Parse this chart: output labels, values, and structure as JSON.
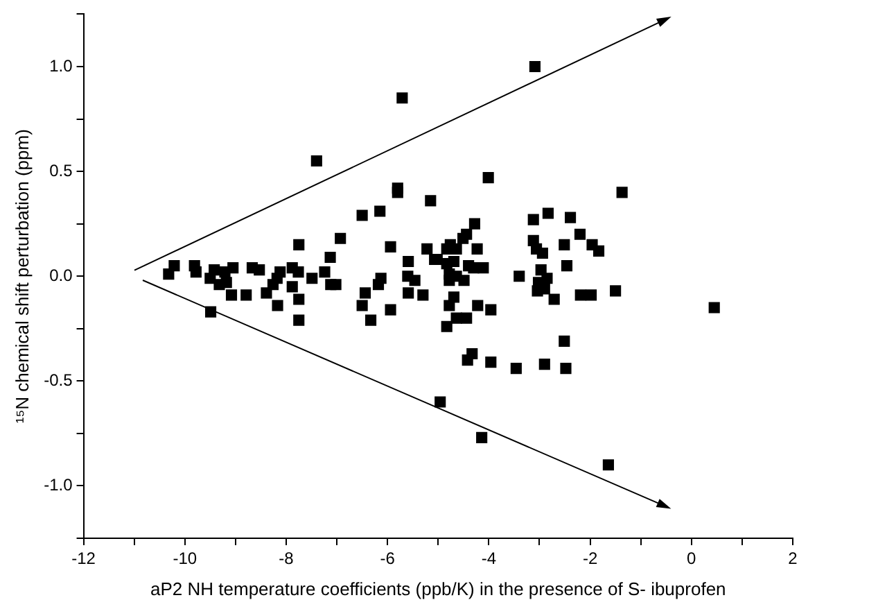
{
  "chart_data": {
    "type": "scatter",
    "xlabel": "aP2 NH temperature coefficients (ppb/K) in the presence of S- ibuprofen",
    "ylabel": "¹⁵N chemical shift perturbation (ppm)",
    "xlim": [
      -12,
      2
    ],
    "xticks": [
      -12,
      {
        "value": -11,
        "label": null
      },
      -10,
      {
        "value": -9,
        "label": null
      },
      -8,
      {
        "value": -7,
        "label": null
      },
      -6,
      {
        "value": -5,
        "label": null
      },
      -4,
      {
        "value": -3,
        "label": null
      },
      -2,
      {
        "value": -1,
        "label": null
      },
      0,
      {
        "value": 1,
        "label": null
      },
      2
    ],
    "ylim": [
      -1.25,
      1.25
    ],
    "yticks": [
      {
        "value": -1.25,
        "label": null
      },
      {
        "value": -1,
        "label": "-1.0"
      },
      {
        "value": -0.75,
        "label": null
      },
      {
        "value": -0.5,
        "label": "-0.5"
      },
      {
        "value": -0.25,
        "label": null
      },
      {
        "value": 0,
        "label": "0.0"
      },
      {
        "value": 0.25,
        "label": null
      },
      {
        "value": 0.5,
        "label": "0.5"
      },
      {
        "value": 0.75,
        "label": null
      },
      {
        "value": 1,
        "label": "1.0"
      },
      {
        "value": 1.25,
        "label": null
      }
    ],
    "grid": false,
    "legend": false,
    "marker": "square",
    "series": [
      {
        "color": "#000000",
        "x": [
          -10.32,
          -10.21,
          -9.81,
          -9.78,
          -9.5,
          -9.42,
          -9.49,
          -9.32,
          -9.21,
          -9.18,
          -9.08,
          -9.05,
          -8.79,
          -8.67,
          -8.53,
          -8.39,
          -8.26,
          -8.18,
          -8.12,
          -8.17,
          -7.88,
          -7.76,
          -7.88,
          -7.75,
          -7.75,
          -7.75,
          -7.49,
          -7.4,
          -7.24,
          -7.13,
          -7.12,
          -7.02,
          -6.93,
          -6.5,
          -6.44,
          -6.5,
          -6.33,
          -6.15,
          -6.13,
          -6.18,
          -5.94,
          -5.94,
          -5.8,
          -5.8,
          -5.71,
          -5.59,
          -5.6,
          -5.59,
          -5.46,
          -5.3,
          -5.22,
          -5.15,
          -5.07,
          -3.09,
          -4.01,
          -1.37,
          -4.28,
          -4.44,
          -4.51,
          -4.76,
          -4.83,
          -4.64,
          -4.23,
          -5.02,
          -4.83,
          -4.69,
          -4.4,
          -4.3,
          -4.11,
          -4.78,
          -4.64,
          -4.78,
          -4.49,
          -4.69,
          -4.78,
          -4.22,
          -3.96,
          -4.64,
          -4.44,
          -4.83,
          -4.33,
          -4.42,
          -3.96,
          -3.46,
          -4.96,
          -4.14,
          -2.9,
          -2.48,
          -2.51,
          -1.64,
          0.45,
          -3.12,
          -2.83,
          -2.39,
          -2.2,
          -1.96,
          -1.83,
          -3.12,
          -3.06,
          -2.94,
          -2.51,
          -2.46,
          -3.4,
          -2.97,
          -2.85,
          -3.02,
          -3.04,
          -2.9,
          -2.71,
          -2.19,
          -1.98,
          -1.5
        ],
        "values": [
          0.01,
          0.05,
          0.05,
          0.02,
          -0.01,
          0.03,
          -0.17,
          -0.04,
          0.02,
          -0.03,
          -0.09,
          0.04,
          -0.09,
          0.04,
          0.03,
          -0.08,
          -0.04,
          -0.01,
          0.02,
          -0.14,
          0.04,
          0.02,
          -0.05,
          -0.11,
          0.15,
          -0.21,
          -0.01,
          0.55,
          0.02,
          0.09,
          -0.04,
          -0.04,
          0.18,
          0.29,
          -0.08,
          -0.14,
          -0.21,
          0.31,
          -0.01,
          -0.04,
          0.14,
          -0.16,
          0.42,
          0.4,
          0.85,
          0.07,
          0,
          -0.08,
          -0.02,
          -0.09,
          0.13,
          0.36,
          0.08,
          1,
          0.47,
          0.4,
          0.25,
          0.2,
          0.18,
          0.15,
          0.13,
          0.13,
          0.13,
          0.08,
          0.06,
          0.07,
          0.05,
          0.04,
          0.04,
          0.01,
          0,
          -0.02,
          -0.02,
          -0.1,
          -0.14,
          -0.14,
          -0.16,
          -0.2,
          -0.2,
          -0.24,
          -0.37,
          -0.4,
          -0.41,
          -0.44,
          -0.6,
          -0.77,
          -0.42,
          -0.44,
          -0.31,
          -0.9,
          -0.15,
          0.27,
          0.3,
          0.28,
          0.2,
          0.15,
          0.12,
          0.17,
          0.13,
          0.11,
          0.15,
          0.05,
          0,
          0.03,
          -0.01,
          -0.03,
          -0.07,
          -0.06,
          -0.11,
          -0.09,
          -0.09,
          -0.07
        ]
      }
    ]
  }
}
